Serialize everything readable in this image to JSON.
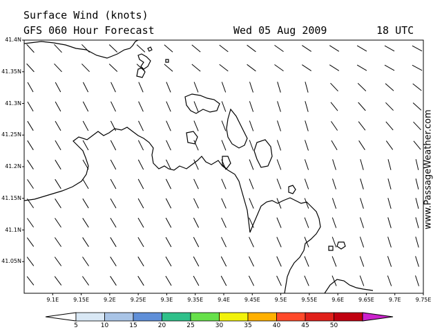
{
  "title": {
    "line1": "Surface Wind (knots)",
    "line2": "GFS 060 Hour Forecast",
    "date": "Wed 05 Aug 2009",
    "time": "18 UTC"
  },
  "watermark": "www.PassageWeather.com",
  "map_bounds": {
    "lon_min": 9.05,
    "lon_max": 9.75,
    "lat_min": 41.0,
    "lat_max": 41.4
  },
  "lat_ticks": [
    {
      "value": 41.4,
      "label": "41.4N"
    },
    {
      "value": 41.35,
      "label": "41.35N"
    },
    {
      "value": 41.3,
      "label": "41.3N"
    },
    {
      "value": 41.25,
      "label": "41.25N"
    },
    {
      "value": 41.2,
      "label": "41.2N"
    },
    {
      "value": 41.15,
      "label": "41.15N"
    },
    {
      "value": 41.1,
      "label": "41.1N"
    },
    {
      "value": 41.05,
      "label": "41.05N"
    }
  ],
  "lon_ticks": [
    {
      "value": 9.1,
      "label": "9.1E"
    },
    {
      "value": 9.15,
      "label": "9.15E"
    },
    {
      "value": 9.2,
      "label": "9.2E"
    },
    {
      "value": 9.25,
      "label": "9.25E"
    },
    {
      "value": 9.3,
      "label": "9.3E"
    },
    {
      "value": 9.35,
      "label": "9.35E"
    },
    {
      "value": 9.4,
      "label": "9.4E"
    },
    {
      "value": 9.45,
      "label": "9.45E"
    },
    {
      "value": 9.5,
      "label": "9.5E"
    },
    {
      "value": 9.55,
      "label": "9.55E"
    },
    {
      "value": 9.6,
      "label": "9.6E"
    },
    {
      "value": 9.65,
      "label": "9.65E"
    },
    {
      "value": 9.7,
      "label": "9.7E"
    },
    {
      "value": 9.75,
      "label": "9.75E"
    }
  ],
  "color_scale": {
    "labels": [
      "5",
      "10",
      "15",
      "20",
      "25",
      "30",
      "35",
      "40",
      "45",
      "50"
    ],
    "colors": [
      "#ffffff",
      "#d9e8f5",
      "#a9c4e6",
      "#5f8fd8",
      "#2fc08a",
      "#66e04a",
      "#f2f20a",
      "#ffb000",
      "#ff4a2a",
      "#e0201a",
      "#c00010",
      "#cc22cc"
    ]
  }
}
